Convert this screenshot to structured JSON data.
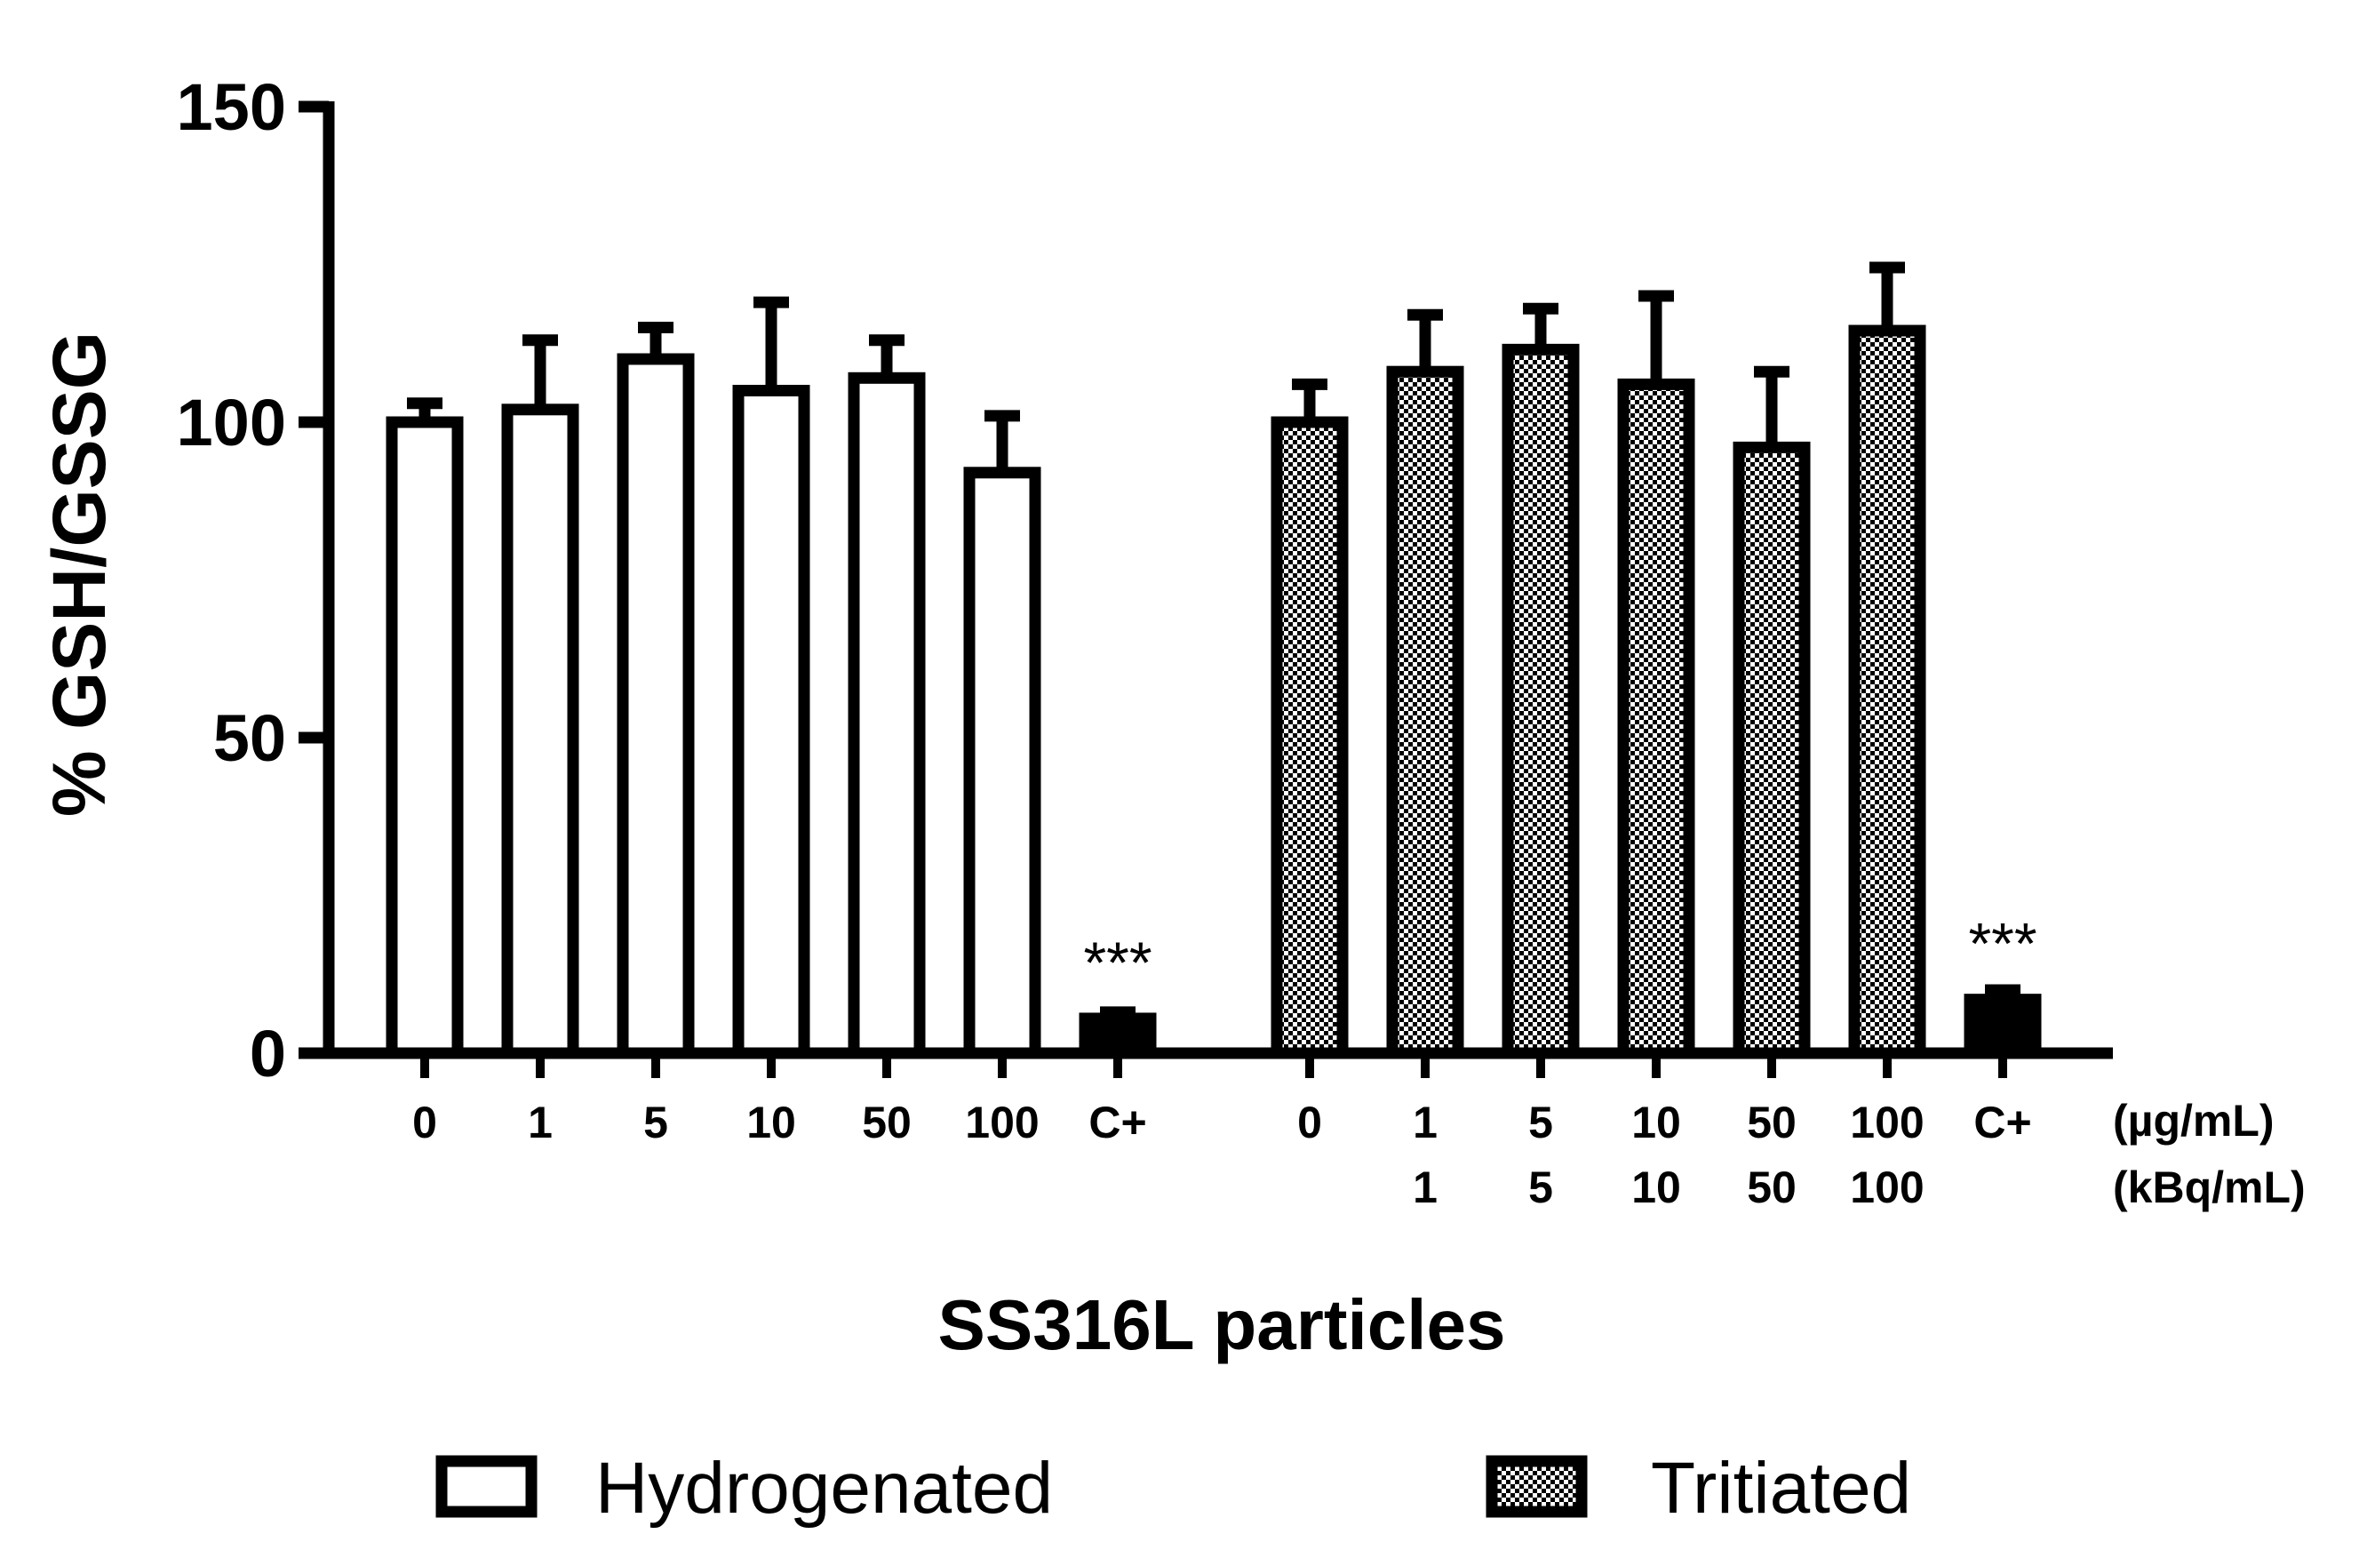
{
  "chart_data": {
    "type": "bar",
    "title": "",
    "ylabel": "% GSH/GSSG",
    "xlabel": "SS316L particles",
    "ylim": [
      0,
      150
    ],
    "yticks": [
      "0",
      "50",
      "100",
      "150"
    ],
    "unit_labels": [
      "(µg/mL)",
      "(kBq/mL)"
    ],
    "groups": [
      {
        "name": "Hydrogenated",
        "pattern": "open",
        "categories": [
          "0",
          "1",
          "5",
          "10",
          "50",
          "100",
          "C+"
        ],
        "second_row": [
          "",
          "",
          "",
          "",
          "",
          "",
          ""
        ],
        "values": [
          100,
          102,
          110,
          105,
          107,
          92,
          5.5
        ],
        "errors": [
          3,
          11,
          5,
          14,
          6,
          9,
          1
        ],
        "significance": [
          "",
          "",
          "",
          "",
          "",
          "",
          "***"
        ]
      },
      {
        "name": "Tritiated",
        "pattern": "checkered",
        "categories": [
          "0",
          "1",
          "5",
          "10",
          "50",
          "100",
          "C+"
        ],
        "second_row": [
          "",
          "1",
          "5",
          "10",
          "50",
          "100",
          ""
        ],
        "values": [
          100,
          108,
          111.5,
          106,
          96,
          114.5,
          8.5
        ],
        "errors": [
          6,
          9,
          6.5,
          14,
          12,
          10,
          1.5
        ],
        "significance": [
          "",
          "",
          "",
          "",
          "",
          "",
          "***"
        ]
      }
    ],
    "legend": {
      "position": "bottom",
      "entries": [
        "Hydrogenated",
        "Tritiated"
      ]
    },
    "colors": {
      "axis": "#000000",
      "bar_stroke": "#000000",
      "open_fill": "#ffffff",
      "control_fill": "#000000"
    }
  }
}
